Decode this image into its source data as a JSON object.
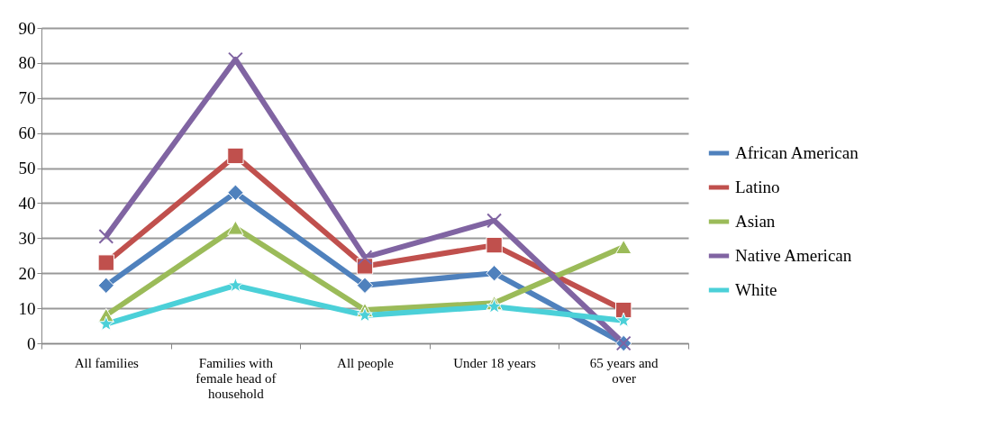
{
  "chart_data": {
    "type": "line",
    "categories": [
      "All families",
      "Families with female head of household",
      "All people",
      "Under 18 years",
      "65 years and over"
    ],
    "series": [
      {
        "name": "African American",
        "color": "#4f81bd",
        "marker": "diamond",
        "values": [
          16.5,
          43,
          16.5,
          20,
          0
        ]
      },
      {
        "name": "Latino",
        "color": "#c0504d",
        "marker": "square",
        "values": [
          23,
          53.5,
          22,
          28,
          9.5
        ]
      },
      {
        "name": "Asian",
        "color": "#9bbb59",
        "marker": "triangle",
        "values": [
          8,
          33,
          9.5,
          11.5,
          27.5
        ]
      },
      {
        "name": "Native American",
        "color": "#8064a2",
        "marker": "cross",
        "values": [
          30.5,
          81,
          24.5,
          35,
          0
        ]
      },
      {
        "name": "White",
        "color": "#4bd0d8",
        "marker": "star",
        "values": [
          5.5,
          16.5,
          8,
          10.5,
          6.5
        ]
      }
    ],
    "ylim": [
      0,
      90
    ],
    "yticks": [
      0,
      10,
      20,
      30,
      40,
      50,
      60,
      70,
      80,
      90
    ],
    "grid": "y",
    "legend": "right",
    "line_style": "solid"
  }
}
